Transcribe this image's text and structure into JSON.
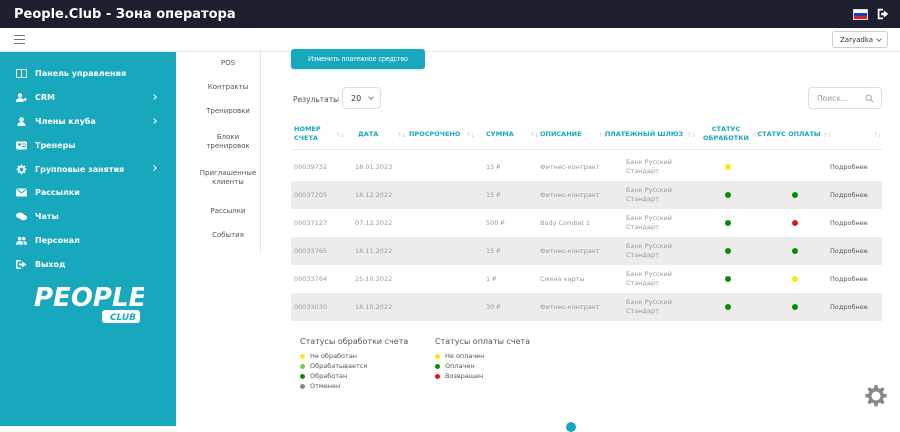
{
  "app": {
    "title": "People.Club - Зона оператора"
  },
  "header": {
    "club_select": "Zaryadka"
  },
  "sidebar": {
    "items": [
      {
        "label": "Панель управления",
        "icon": "dashboard-icon",
        "arrow": false
      },
      {
        "label": "CRM",
        "icon": "user-cog-icon",
        "arrow": true
      },
      {
        "label": "Члены клуба",
        "icon": "user-icon",
        "arrow": true
      },
      {
        "label": "Тренеры",
        "icon": "id-card-icon",
        "arrow": false
      },
      {
        "label": "Групповые занятия",
        "icon": "gear-icon",
        "arrow": true
      },
      {
        "label": "Рассылки",
        "icon": "mail-icon",
        "arrow": false
      },
      {
        "label": "Чаты",
        "icon": "chat-icon",
        "arrow": false
      },
      {
        "label": "Персонал",
        "icon": "users-icon",
        "arrow": false
      },
      {
        "label": "Выход",
        "icon": "exit-icon",
        "arrow": false
      }
    ],
    "logo_text": "PEOPLE",
    "logo_sub": "CLUB"
  },
  "subnav": [
    "POS",
    "Контракты",
    "Тренировки",
    "Блоки тренировок",
    "Приглашенные клиенты",
    "Рассылки",
    "События"
  ],
  "actions": {
    "change_payment": "Изменить платежное средство"
  },
  "results": {
    "label": "Результаты :",
    "page_size": "20"
  },
  "search": {
    "placeholder": "Поиск..."
  },
  "table": {
    "headers": [
      "НОМЕР СЧЕТА",
      "ДАТА",
      "ПРОСРОЧЕНО",
      "СУММА",
      "ОПИСАНИЕ",
      "ПЛАТЕЖНЫЙ ШЛЮЗ",
      "СТАТУС ОБРАБОТКИ",
      "СТАТУС ОПЛАТЫ"
    ],
    "rows": [
      {
        "number": "00039732",
        "date": "18.01.2023",
        "overdue": "",
        "amount": "15 ₽",
        "desc": "Фитнес-контракт",
        "gateway": "Банк Русский Стандарт",
        "proc": "yellow",
        "pay": "",
        "more": "Подробнее"
      },
      {
        "number": "00037205",
        "date": "18.12.2022",
        "overdue": "",
        "amount": "15 ₽",
        "desc": "Фитнес-контракт",
        "gateway": "Банк Русский Стандарт",
        "proc": "green",
        "pay": "green",
        "more": "Подробнее"
      },
      {
        "number": "00037127",
        "date": "07.12.2022",
        "overdue": "",
        "amount": "500 ₽",
        "desc": "Body Combat 1",
        "gateway": "Банк Русский Стандарт",
        "proc": "green",
        "pay": "red",
        "more": "Подробнее"
      },
      {
        "number": "00033765",
        "date": "18.11.2022",
        "overdue": "",
        "amount": "15 ₽",
        "desc": "Фитнес-контракт",
        "gateway": "Банк Русский Стандарт",
        "proc": "green",
        "pay": "green",
        "more": "Подробнее"
      },
      {
        "number": "00033764",
        "date": "25.10.2022",
        "overdue": "",
        "amount": "1 ₽",
        "desc": "Смена карты",
        "gateway": "Банк Русский Стандарт",
        "proc": "green",
        "pay": "yellow",
        "more": "Подробнее"
      },
      {
        "number": "00033030",
        "date": "18.10.2022",
        "overdue": "",
        "amount": "30 ₽",
        "desc": "Фитнес-контракт",
        "gateway": "Банк Русский Стандарт",
        "proc": "green",
        "pay": "green",
        "more": "Подробнее"
      }
    ]
  },
  "legend_processing": {
    "title": "Статусы обработки счета",
    "items": [
      {
        "label": "Не обработан",
        "color": "yellow"
      },
      {
        "label": "Обрабатывается",
        "color": "lightgreen"
      },
      {
        "label": "Обработан",
        "color": "green"
      },
      {
        "label": "Отменен",
        "color": "gray"
      }
    ]
  },
  "legend_payment": {
    "title": "Статусы оплаты счета",
    "items": [
      {
        "label": "Не оплачен",
        "color": "yellow"
      },
      {
        "label": "Оплачен",
        "color": "green"
      },
      {
        "label": "Возвращен",
        "color": "red"
      }
    ]
  },
  "colors": {
    "accent": "#17a8be",
    "topbar": "#1c1f2e",
    "yellow": "#ffe81a",
    "green": "#0a8a0a",
    "lightgreen": "#7cc85a",
    "red": "#e01a1a",
    "gray": "#888888"
  }
}
